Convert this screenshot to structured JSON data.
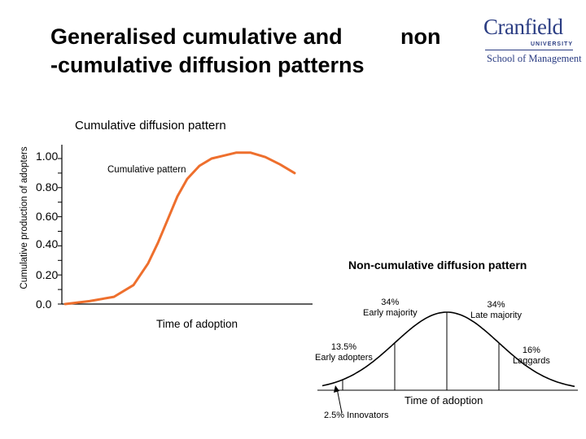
{
  "page": {
    "title_line1_a": "Generalised cumulative and",
    "title_line1_b": "non",
    "title_line2": "-cumulative diffusion patterns"
  },
  "logo": {
    "name": "Cranfield",
    "university": "UNIVERSITY",
    "school": "School of Management",
    "brand_color": "#2b3d83"
  },
  "chart_data": [
    {
      "type": "line",
      "title": "Cumulative diffusion pattern",
      "ylabel": "Cumulative production of adopters",
      "xlabel": "Time of adoption",
      "ylim": [
        0,
        1.0
      ],
      "yticks": [
        "0.0",
        "0.20",
        "0.40",
        "0.60",
        "0.80",
        "1.00"
      ],
      "series": [
        {
          "name": "Cumulative pattern",
          "color": "#ee6f2d",
          "x": [
            0,
            10,
            20,
            28,
            34,
            38,
            42,
            46,
            50,
            55,
            60,
            65,
            70,
            76,
            82,
            88,
            94
          ],
          "y": [
            0.0,
            0.02,
            0.05,
            0.13,
            0.28,
            0.42,
            0.58,
            0.74,
            0.86,
            0.95,
            1.0,
            1.02,
            1.04,
            1.04,
            1.01,
            0.96,
            0.9
          ]
        }
      ]
    },
    {
      "type": "area",
      "title": "Non-cumulative diffusion pattern",
      "xlabel": "Time of adoption",
      "segments": [
        {
          "label": "2.5% Innovators",
          "percent": 2.5
        },
        {
          "label": "13.5% Early adopters",
          "percent": 13.5
        },
        {
          "label": "34% Early majority",
          "percent": 34
        },
        {
          "label": "34% Late majority",
          "percent": 34
        },
        {
          "label": "16% Laggards",
          "percent": 16
        }
      ],
      "color": "#000000"
    }
  ],
  "labels": {
    "early_majority_pct": "34%",
    "early_majority": "Early majority",
    "late_majority_pct": "34%",
    "late_majority": "Late majority",
    "early_adopters_pct": "13.5%",
    "early_adopters": "Early adopters",
    "laggards_pct": "16%",
    "laggards": "Laggards",
    "innovators": "2.5% Innovators"
  }
}
